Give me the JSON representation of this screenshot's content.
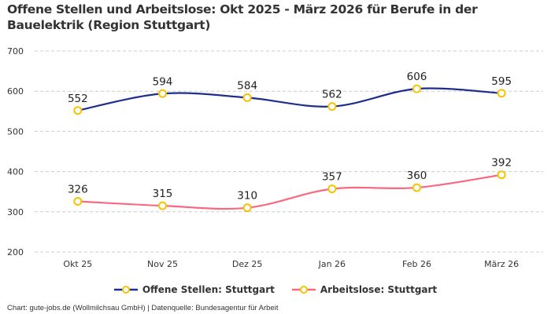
{
  "title": "Offene Stellen und Arbeitslose: Okt 2025 - März 2026 für Berufe in der Bauelektrik (Region Stuttgart)",
  "credit": "Chart: gute-jobs.de (Wollmilchsau GmbH) | Datenquelle: Bundesagentur für Arbeit",
  "chart_data": {
    "type": "line",
    "title": "Offene Stellen und Arbeitslose: Okt 2025 - März 2026 für Berufe in der Bauelektrik (Region Stuttgart)",
    "categories": [
      "Okt 25",
      "Nov 25",
      "Dez 25",
      "Jan 26",
      "Feb 26",
      "März 26"
    ],
    "yticks": [
      200,
      300,
      400,
      500,
      600,
      700
    ],
    "ylim": [
      200,
      700
    ],
    "grid": true,
    "legend_position": "bottom",
    "marker_color": "#f5c400",
    "series": [
      {
        "name": "Offene Stellen: Stuttgart",
        "color": "#1e2e8c",
        "values": [
          552,
          594,
          584,
          562,
          606,
          595
        ]
      },
      {
        "name": "Arbeitslose: Stuttgart",
        "color": "#f8697f",
        "values": [
          326,
          315,
          310,
          357,
          360,
          392
        ]
      }
    ]
  }
}
